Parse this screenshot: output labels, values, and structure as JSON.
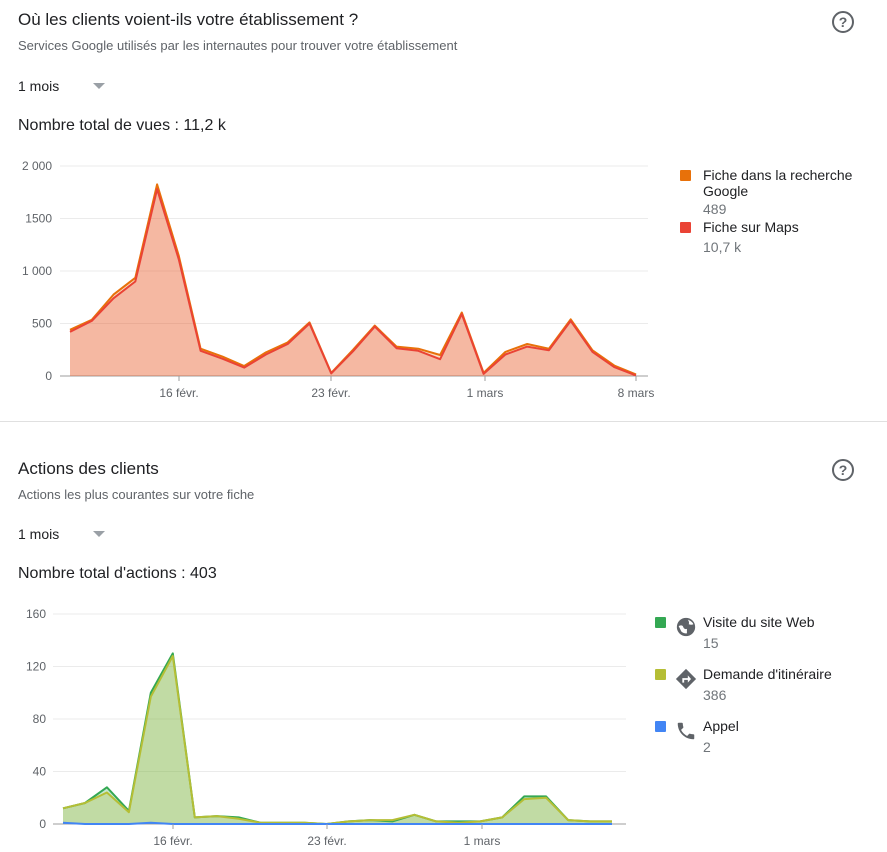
{
  "views_card": {
    "title": "Où les clients voient-ils votre établissement ?",
    "subtitle": "Services Google utilisés par les internautes pour trouver votre établissement",
    "period": "1 mois",
    "total": "Nombre total de vues : 11,2 k",
    "help_icon": "help-icon",
    "legend": [
      {
        "label": "Fiche dans la recherche Google",
        "value": "489",
        "color": "#e8710a"
      },
      {
        "label": "Fiche sur Maps",
        "value": "10,7 k",
        "color": "#ea4335"
      }
    ]
  },
  "actions_card": {
    "title": "Actions des clients",
    "subtitle": "Actions les plus courantes sur votre fiche",
    "period": "1 mois",
    "total": "Nombre total d'actions : 403",
    "help_icon": "help-icon",
    "legend": [
      {
        "label": "Visite du site Web",
        "value": "15",
        "color": "#34a853",
        "icon": "globe-icon"
      },
      {
        "label": "Demande d'itinéraire",
        "value": "386",
        "color": "#b5be35",
        "icon": "directions-icon"
      },
      {
        "label": "Appel",
        "value": "2",
        "color": "#4285f4",
        "icon": "phone-icon"
      }
    ]
  },
  "chart_data": [
    {
      "type": "area",
      "title": "",
      "x_ticks": [
        "16 févr.",
        "23 févr.",
        "1 mars",
        "8 mars"
      ],
      "ylim": [
        0,
        2000
      ],
      "y_ticks": [
        "0",
        "500",
        "1 000",
        "1500",
        "2 000"
      ],
      "grid": true,
      "legend_position": "right",
      "series": [
        {
          "name": "Fiche dans la recherche Google",
          "color": "#e8710a",
          "values": [
            440,
            535,
            775,
            935,
            1825,
            1145,
            260,
            185,
            95,
            225,
            320,
            510,
            30,
            250,
            480,
            280,
            260,
            200,
            605,
            30,
            230,
            305,
            260,
            540,
            245,
            100,
            15
          ]
        },
        {
          "name": "Fiche sur Maps",
          "color": "#ea4335",
          "values": [
            420,
            525,
            740,
            900,
            1780,
            1110,
            240,
            165,
            80,
            205,
            305,
            500,
            25,
            235,
            470,
            265,
            240,
            160,
            590,
            20,
            205,
            280,
            245,
            525,
            230,
            85,
            5
          ]
        }
      ]
    },
    {
      "type": "area",
      "title": "",
      "x_ticks": [
        "16 févr.",
        "23 févr.",
        "1 mars"
      ],
      "ylim": [
        0,
        160
      ],
      "y_ticks": [
        "0",
        "40",
        "80",
        "120",
        "160"
      ],
      "grid": true,
      "legend_position": "right",
      "series": [
        {
          "name": "Visite du site Web",
          "color": "#34a853",
          "values": [
            12,
            16,
            28,
            10,
            100,
            130,
            5,
            6,
            5,
            1,
            1,
            1,
            0,
            2,
            3,
            2,
            7,
            2,
            2,
            2,
            5,
            21,
            21,
            3,
            2,
            2
          ]
        },
        {
          "name": "Demande d'itinéraire",
          "color": "#b5be35",
          "values": [
            12,
            16,
            24,
            9,
            97,
            128,
            5,
            6,
            4,
            1,
            1,
            1,
            0,
            2,
            3,
            3,
            7,
            2,
            1,
            2,
            5,
            19,
            20,
            3,
            2,
            2
          ]
        },
        {
          "name": "Appel",
          "color": "#4285f4",
          "values": [
            1,
            0,
            0,
            0,
            1,
            0,
            0,
            0,
            0,
            0,
            0,
            0,
            0,
            0,
            0,
            0,
            0,
            0,
            0,
            0,
            0,
            0,
            0,
            0,
            0,
            0
          ]
        }
      ]
    }
  ]
}
